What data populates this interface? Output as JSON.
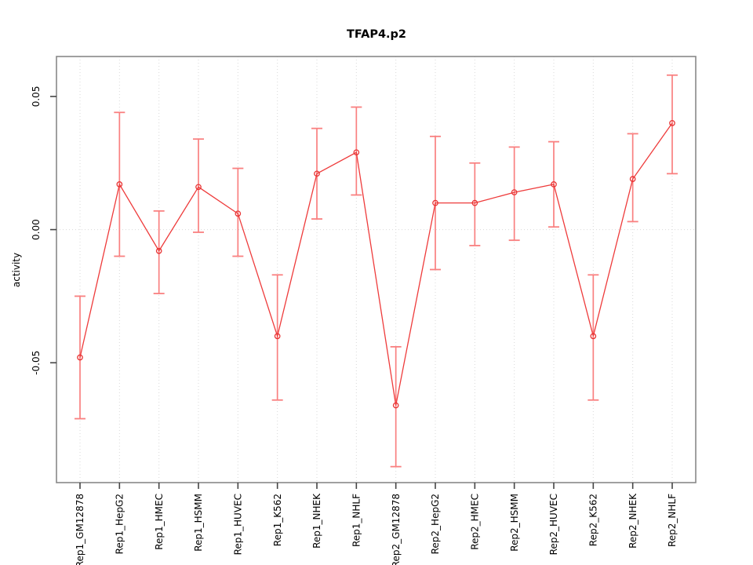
{
  "chart_data": {
    "type": "line",
    "title": "TFAP4.p2",
    "xlabel": "",
    "ylabel": "activity",
    "categories": [
      "Rep1_GM12878",
      "Rep1_HepG2",
      "Rep1_HMEC",
      "Rep1_HSMM",
      "Rep1_HUVEC",
      "Rep1_K562",
      "Rep1_NHEK",
      "Rep1_NHLF",
      "Rep2_GM12878",
      "Rep2_HepG2",
      "Rep2_HMEC",
      "Rep2_HSMM",
      "Rep2_HUVEC",
      "Rep2_K562",
      "Rep2_NHEK",
      "Rep2_NHLF"
    ],
    "series": [
      {
        "name": "activity",
        "values": [
          -0.048,
          0.017,
          -0.008,
          0.016,
          0.006,
          -0.04,
          0.021,
          0.029,
          -0.066,
          0.01,
          0.01,
          0.014,
          0.017,
          -0.04,
          0.019,
          0.04
        ],
        "err_low": [
          -0.071,
          -0.01,
          -0.024,
          -0.001,
          -0.01,
          -0.064,
          0.004,
          0.013,
          -0.089,
          -0.015,
          -0.006,
          -0.004,
          0.001,
          -0.064,
          0.003,
          0.021
        ],
        "err_high": [
          -0.025,
          0.044,
          0.007,
          0.034,
          0.023,
          -0.017,
          0.038,
          0.046,
          -0.044,
          0.035,
          0.025,
          0.031,
          0.033,
          -0.017,
          0.036,
          0.058
        ]
      }
    ],
    "ylim": [
      -0.095,
      0.065
    ],
    "yticks": {
      "values": [
        0.05,
        0.0,
        -0.05
      ],
      "labels": [
        "0.05",
        "0.00",
        "-0.05"
      ]
    },
    "grid": {
      "vertical_at_categories": true,
      "horizontal_at_zero": true,
      "style": "dotted"
    },
    "legend": "none",
    "colors": {
      "line": "#ee3b3b",
      "point": "#e83535",
      "errorbar": "#f98080",
      "grid": "#d9d9d9",
      "box": "#888888",
      "tick": "#444444",
      "text": "#000000",
      "background": "#ffffff"
    }
  }
}
